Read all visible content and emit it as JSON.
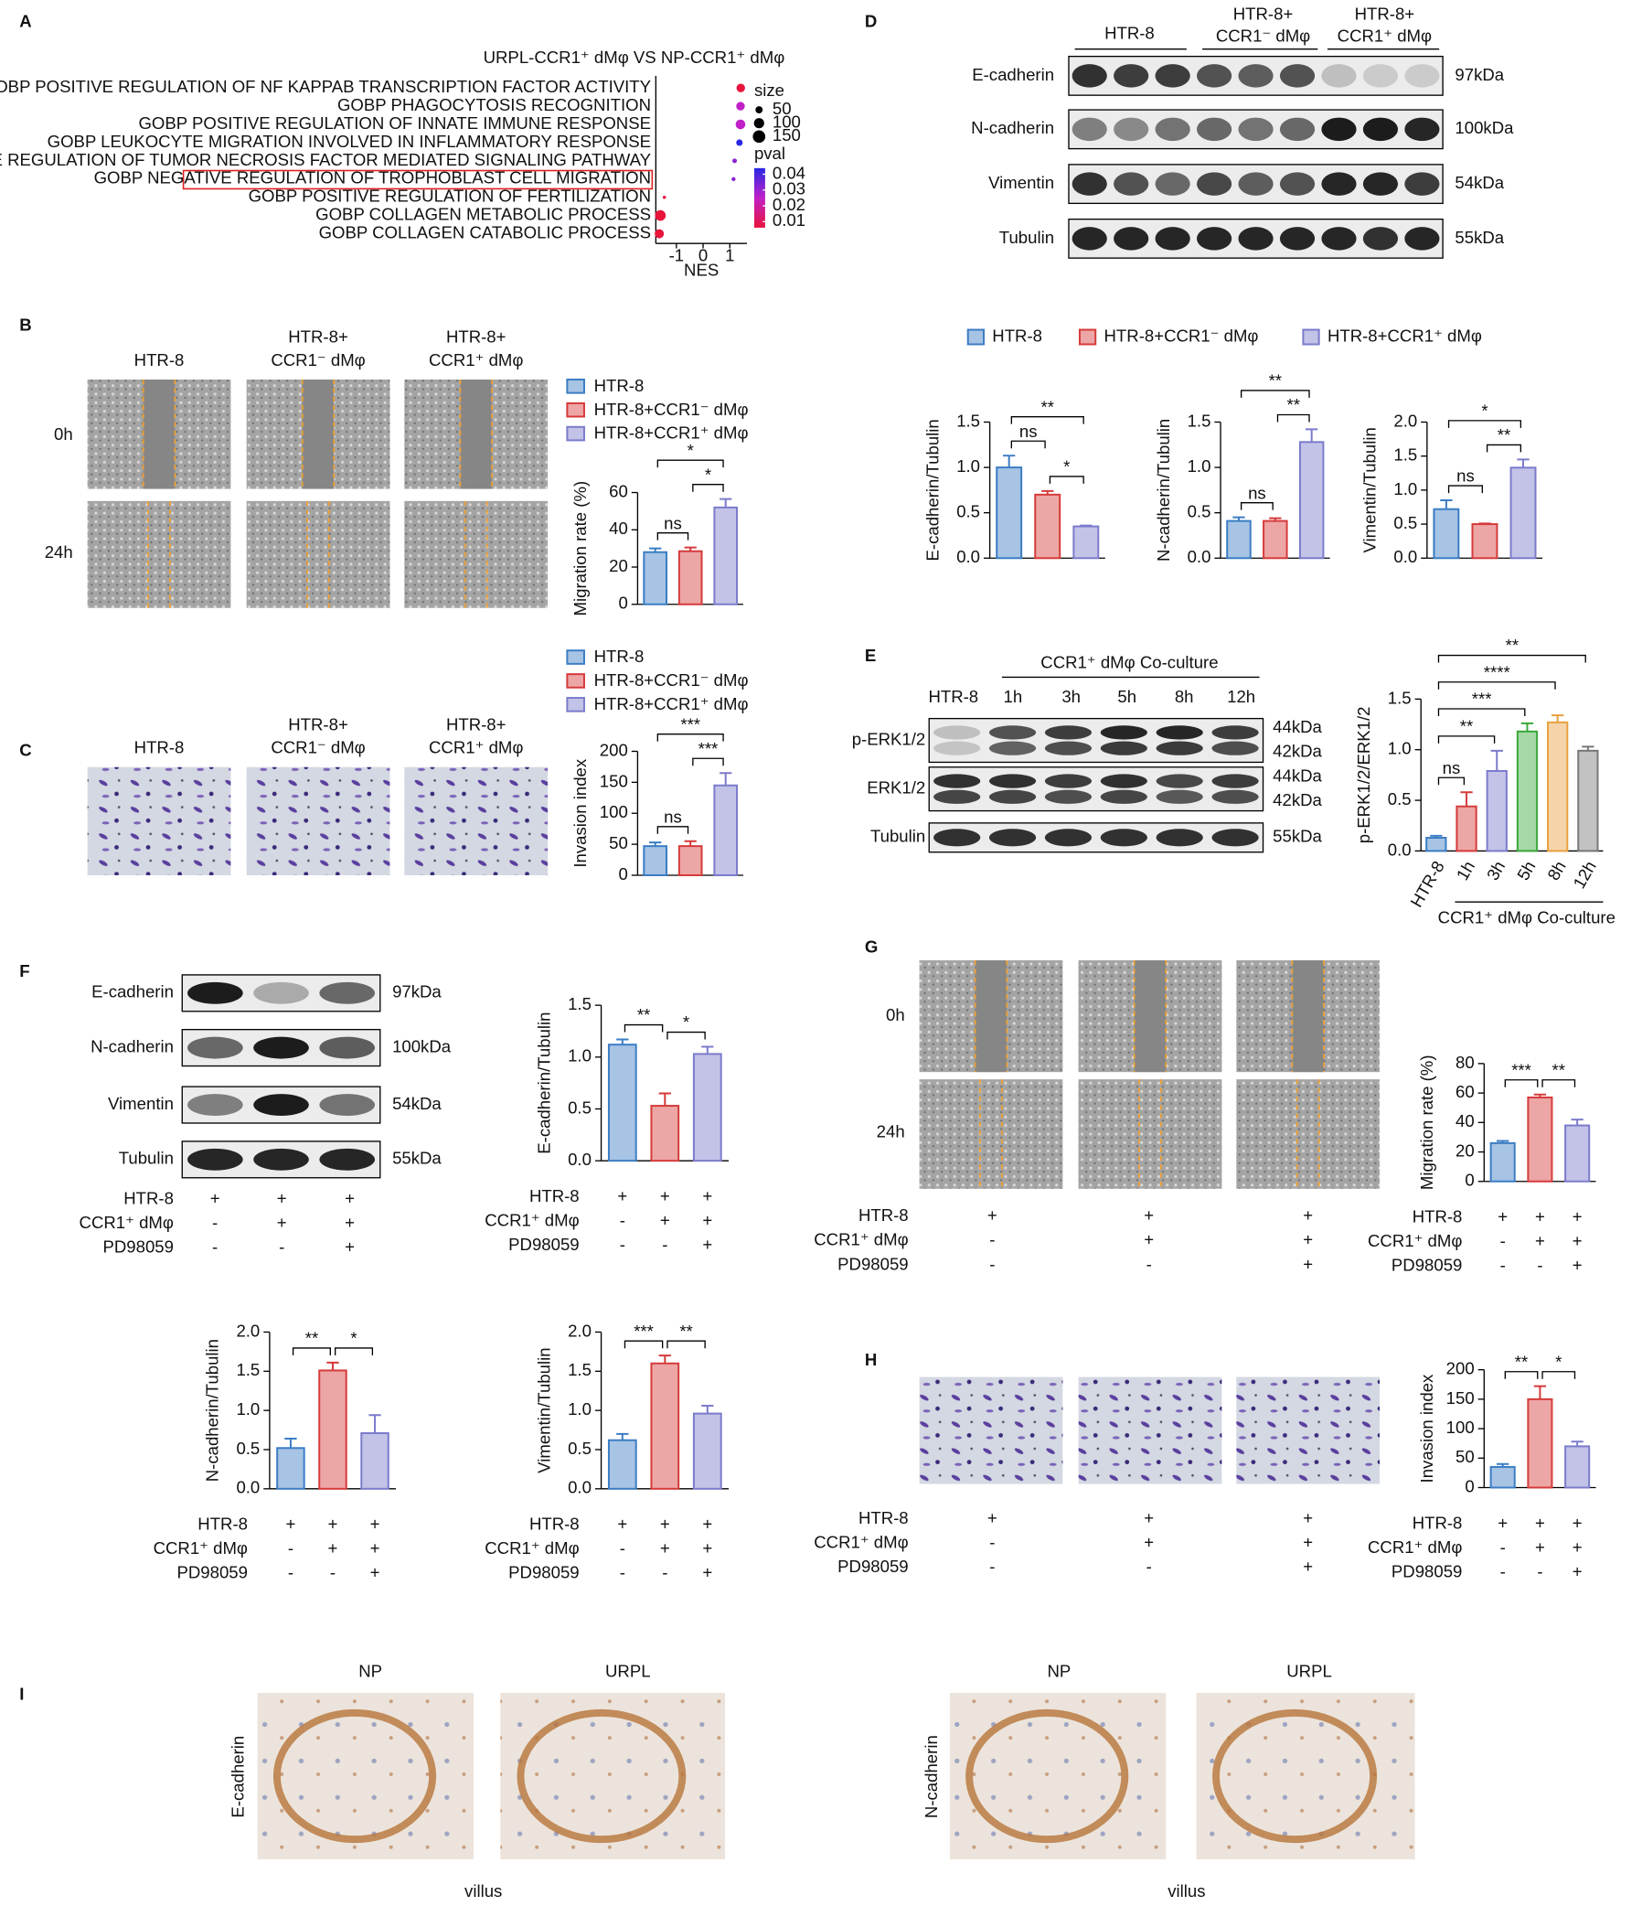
{
  "panels": {
    "letters": [
      "A",
      "B",
      "C",
      "D",
      "E",
      "F",
      "G",
      "H",
      "I"
    ],
    "B": {
      "columns": [
        [
          "HTR-8"
        ],
        [
          "HTR-8+",
          "CCR1⁻ dMφ"
        ],
        [
          "HTR-8+",
          "CCR1⁺ dMφ"
        ]
      ],
      "rows": [
        "0h",
        "24h"
      ]
    },
    "C": {
      "columns": [
        [
          "HTR-8"
        ],
        [
          "HTR-8+",
          "CCR1⁻ dMφ"
        ],
        [
          "HTR-8+",
          "CCR1⁺ dMφ"
        ]
      ]
    },
    "D": {
      "groups": [
        [
          "HTR-8"
        ],
        [
          "HTR-8+",
          "CCR1⁻ dMφ"
        ],
        [
          "HTR-8+",
          "CCR1⁺ dMφ"
        ]
      ],
      "rows": [
        {
          "protein": "E-cadherin",
          "sizes": [
            "97kDa"
          ]
        },
        {
          "protein": "N-cadherin",
          "sizes": [
            "100kDa"
          ]
        },
        {
          "protein": "Vimentin",
          "sizes": [
            "54kDa"
          ]
        },
        {
          "protein": "Tubulin",
          "sizes": [
            "55kDa"
          ]
        }
      ],
      "legend": [
        {
          "name": "HTR-8",
          "color": "#3b7dc4"
        },
        {
          "name": "HTR-8+CCR1⁻ dMφ",
          "color": "#d63a3a"
        },
        {
          "name": "HTR-8+CCR1⁺ dMφ",
          "color": "#7b7bcc"
        }
      ]
    },
    "E": {
      "header": "CCR1⁺ dMφ Co-culture",
      "lanes": [
        "HTR-8",
        "1h",
        "3h",
        "5h",
        "8h",
        "12h"
      ],
      "rows": [
        {
          "protein": "p-ERK1/2",
          "sizes": [
            "44kDa",
            "42kDa"
          ]
        },
        {
          "protein": "ERK1/2",
          "sizes": [
            "44kDa",
            "42kDa"
          ]
        },
        {
          "protein": "Tubulin",
          "sizes": [
            "55kDa"
          ]
        }
      ]
    },
    "F": {
      "rows": [
        {
          "protein": "E-cadherin",
          "sizes": [
            "97kDa"
          ]
        },
        {
          "protein": "N-cadherin",
          "sizes": [
            "100kDa"
          ]
        },
        {
          "protein": "Vimentin",
          "sizes": [
            "54kDa"
          ]
        },
        {
          "protein": "Tubulin",
          "sizes": [
            "55kDa"
          ]
        }
      ],
      "conditions": [
        {
          "name": "HTR-8",
          "marks": [
            "+",
            "+",
            "+"
          ]
        },
        {
          "name": "CCR1⁺ dMφ",
          "marks": [
            "-",
            "+",
            "+"
          ]
        },
        {
          "name": "PD98059",
          "marks": [
            "-",
            "-",
            "+"
          ]
        }
      ]
    },
    "G": {
      "rows": [
        "0h",
        "24h"
      ],
      "conditions": [
        {
          "name": "HTR-8",
          "marks": [
            "+",
            "+",
            "+"
          ]
        },
        {
          "name": "CCR1⁺ dMφ",
          "marks": [
            "-",
            "+",
            "+"
          ]
        },
        {
          "name": "PD98059",
          "marks": [
            "-",
            "-",
            "+"
          ]
        }
      ]
    },
    "H": {
      "conditions": [
        {
          "name": "HTR-8",
          "marks": [
            "+",
            "+",
            "+"
          ]
        },
        {
          "name": "CCR1⁺ dMφ",
          "marks": [
            "-",
            "+",
            "+"
          ]
        },
        {
          "name": "PD98059",
          "marks": [
            "-",
            "-",
            "+"
          ]
        }
      ]
    },
    "I": {
      "groups": [
        {
          "stain": "E-cadherin",
          "columns": [
            "NP",
            "URPL"
          ],
          "caption": "villus"
        },
        {
          "stain": "N-cadherin",
          "columns": [
            "NP",
            "URPL"
          ],
          "caption": "villus"
        }
      ]
    }
  },
  "chart_data": [
    {
      "type": "dot",
      "title": "URPL-CCR1⁺ dMφ VS NP-CCR1⁺ dMφ",
      "categories": [
        "GOBP POSITIVE REGULATION OF NF KAPPAB TRANSCRIPTION FACTOR ACTIVITY",
        "GOBP PHAGOCYTOSIS RECOGNITION",
        "GOBP POSITIVE REGULATION OF INNATE IMMUNE RESPONSE",
        "GOBP LEUKOCYTE MIGRATION INVOLVED IN INFLAMMATORY RESPONSE",
        "GOBP POSITIVE REGULATION OF TUMOR NECROSIS FACTOR MEDIATED SIGNALING PATHWAY",
        "GOBP NEGATIVE REGULATION OF TROPHOBLAST CELL MIGRATION",
        "GOBP POSITIVE REGULATION OF FERTILIZATION",
        "GOBP COLLAGEN METABOLIC PROCESS",
        "GOBP COLLAGEN CATABOLIC PROCESS"
      ],
      "values": [
        1.41,
        1.4,
        1.4,
        1.36,
        1.18,
        1.14,
        -1.45,
        -1.6,
        -1.64
      ],
      "sizes": [
        70,
        70,
        90,
        40,
        20,
        15,
        10,
        110,
        80
      ],
      "pvals": [
        0.01,
        0.025,
        0.025,
        0.04,
        0.03,
        0.03,
        0.01,
        0.01,
        0.01
      ],
      "xlabel": "NES",
      "xlim": [
        -1.77,
        1.64
      ],
      "xticks": [
        -1,
        0,
        1
      ],
      "size_legend": {
        "title": "size",
        "ticks": [
          50,
          100,
          150
        ]
      },
      "color_legend": {
        "title": "pval",
        "ticks": [
          0.04,
          0.03,
          0.02,
          0.01
        ]
      }
    },
    {
      "type": "bar",
      "ylabel": "Migration rate (%)",
      "values": [
        28,
        28.5,
        52
      ],
      "errors": [
        2,
        2,
        4.5
      ],
      "colors": [
        "#3b7dc4",
        "#d63a3a",
        "#7b7bcc"
      ],
      "ylim": [
        0,
        60
      ],
      "yticks": [
        0,
        20,
        40,
        60
      ],
      "legend": [
        "HTR-8",
        "HTR-8+CCR1⁻ dMφ",
        "HTR-8+CCR1⁺ dMφ"
      ],
      "significance": [
        "ns",
        "*",
        "*"
      ],
      "comparisons": "adjacent"
    },
    {
      "type": "bar",
      "ylabel": "Invasion index",
      "values": [
        47,
        47,
        145
      ],
      "errors": [
        6,
        8,
        20
      ],
      "colors": [
        "#3b7dc4",
        "#d63a3a",
        "#7b7bcc"
      ],
      "ylim": [
        0,
        200
      ],
      "yticks": [
        0,
        50,
        100,
        150,
        200
      ],
      "legend": [
        "HTR-8",
        "HTR-8+CCR1⁻ dMφ",
        "HTR-8+CCR1⁺ dMφ"
      ],
      "significance": [
        "ns",
        "***",
        "***"
      ],
      "comparisons": "adjacent"
    },
    {
      "type": "bar",
      "ylabel": "E-cadherin/Tubulin",
      "values": [
        1.0,
        0.7,
        0.35
      ],
      "errors": [
        0.13,
        0.04,
        0.01
      ],
      "colors": [
        "#3b7dc4",
        "#d63a3a",
        "#7b7bcc"
      ],
      "ylim": [
        0,
        1.5
      ],
      "yticks": [
        {
          "value": 0,
          "label": "0.0"
        },
        0.5,
        {
          "value": 1,
          "label": "1.0"
        },
        1.5
      ],
      "significance": [
        "ns",
        "*",
        "**"
      ],
      "comparisons": "adjacent"
    },
    {
      "type": "bar",
      "ylabel": "N-cadherin/Tubulin",
      "values": [
        0.41,
        0.41,
        1.28
      ],
      "errors": [
        0.04,
        0.03,
        0.14
      ],
      "colors": [
        "#3b7dc4",
        "#d63a3a",
        "#7b7bcc"
      ],
      "ylim": [
        0,
        1.5
      ],
      "yticks": [
        {
          "value": 0,
          "label": "0.0"
        },
        0.5,
        {
          "value": 1,
          "label": "1.0"
        },
        1.5
      ],
      "significance": [
        "ns",
        "**",
        "**"
      ],
      "comparisons": "adjacent"
    },
    {
      "type": "bar",
      "ylabel": "Vimentin/Tubulin",
      "values": [
        0.72,
        0.5,
        1.33
      ],
      "errors": [
        0.13,
        0.01,
        0.12
      ],
      "colors": [
        "#3b7dc4",
        "#d63a3a",
        "#7b7bcc"
      ],
      "ylim": [
        0,
        2
      ],
      "yticks": [
        {
          "value": 0,
          "label": "0.0"
        },
        0.5,
        {
          "value": 1,
          "label": "1.0"
        },
        1.5,
        {
          "value": 2,
          "label": "2.0"
        }
      ],
      "significance": [
        "ns",
        "**",
        "*"
      ],
      "comparisons": "adjacent"
    },
    {
      "type": "bar",
      "ylabel": "p-ERK1/2/ERK1/2",
      "categories": [
        "HTR-8",
        "1h",
        "3h",
        "5h",
        "8h",
        "12h"
      ],
      "xlabel": "CCR1⁺ dMφ Co-culture",
      "values": [
        0.13,
        0.44,
        0.79,
        1.18,
        1.27,
        0.99
      ],
      "errors": [
        0.02,
        0.14,
        0.2,
        0.08,
        0.07,
        0.04
      ],
      "colors": [
        "#3b7dc4",
        "#d63a3a",
        "#7b7bcc",
        "#3aa83a",
        "#e8a040",
        "#777777"
      ],
      "ylim": [
        0,
        1.5
      ],
      "yticks": [
        {
          "value": 0,
          "label": "0.0"
        },
        0.5,
        {
          "value": 1,
          "label": "1.0"
        },
        1.5
      ],
      "significance": [
        "ns",
        "**",
        "***",
        "****",
        "**"
      ],
      "comparisons": "vs-first"
    },
    {
      "type": "bar",
      "ylabel": "E-cadherin/Tubulin",
      "values": [
        1.12,
        0.53,
        1.03
      ],
      "errors": [
        0.05,
        0.12,
        0.07
      ],
      "colors": [
        "#3b7dc4",
        "#d63a3a",
        "#7b7bcc"
      ],
      "ylim": [
        0,
        1.5
      ],
      "yticks": [
        {
          "value": 0,
          "label": "0.0"
        },
        0.5,
        {
          "value": 1,
          "label": "1.0"
        },
        1.5
      ],
      "significance": [
        "**",
        "*"
      ],
      "comparisons": "adjacent",
      "conditions": [
        {
          "name": "HTR-8",
          "marks": [
            "+",
            "+",
            "+"
          ]
        },
        {
          "name": "CCR1⁺ dMφ",
          "marks": [
            "-",
            "+",
            "+"
          ]
        },
        {
          "name": "PD98059",
          "marks": [
            "-",
            "-",
            "+"
          ]
        }
      ]
    },
    {
      "type": "bar",
      "ylabel": "N-cadherin/Tubulin",
      "values": [
        0.52,
        1.51,
        0.71
      ],
      "errors": [
        0.12,
        0.1,
        0.23
      ],
      "colors": [
        "#3b7dc4",
        "#d63a3a",
        "#7b7bcc"
      ],
      "ylim": [
        0,
        2
      ],
      "yticks": [
        {
          "value": 0,
          "label": "0.0"
        },
        0.5,
        {
          "value": 1,
          "label": "1.0"
        },
        1.5,
        {
          "value": 2,
          "label": "2.0"
        }
      ],
      "significance": [
        "**",
        "*"
      ],
      "comparisons": "adjacent",
      "conditions": [
        {
          "name": "HTR-8",
          "marks": [
            "+",
            "+",
            "+"
          ]
        },
        {
          "name": "CCR1⁺ dMφ",
          "marks": [
            "-",
            "+",
            "+"
          ]
        },
        {
          "name": "PD98059",
          "marks": [
            "-",
            "-",
            "+"
          ]
        }
      ]
    },
    {
      "type": "bar",
      "ylabel": "Vimentin/Tubulin",
      "values": [
        0.62,
        1.6,
        0.96
      ],
      "errors": [
        0.08,
        0.1,
        0.1
      ],
      "colors": [
        "#3b7dc4",
        "#d63a3a",
        "#7b7bcc"
      ],
      "ylim": [
        0,
        2
      ],
      "yticks": [
        {
          "value": 0,
          "label": "0.0"
        },
        0.5,
        {
          "value": 1,
          "label": "1.0"
        },
        1.5,
        {
          "value": 2,
          "label": "2.0"
        }
      ],
      "significance": [
        "***",
        "**"
      ],
      "comparisons": "adjacent",
      "conditions": [
        {
          "name": "HTR-8",
          "marks": [
            "+",
            "+",
            "+"
          ]
        },
        {
          "name": "CCR1⁺ dMφ",
          "marks": [
            "-",
            "+",
            "+"
          ]
        },
        {
          "name": "PD98059",
          "marks": [
            "-",
            "-",
            "+"
          ]
        }
      ]
    },
    {
      "type": "bar",
      "ylabel": "Migration rate (%)",
      "values": [
        26,
        57,
        38
      ],
      "errors": [
        1.5,
        2,
        4
      ],
      "colors": [
        "#3b7dc4",
        "#d63a3a",
        "#7b7bcc"
      ],
      "ylim": [
        0,
        80
      ],
      "yticks": [
        0,
        20,
        40,
        60,
        80
      ],
      "significance": [
        "***",
        "**"
      ],
      "comparisons": "adjacent",
      "conditions": [
        {
          "name": "HTR-8",
          "marks": [
            "+",
            "+",
            "+"
          ]
        },
        {
          "name": "CCR1⁺ dMφ",
          "marks": [
            "-",
            "+",
            "+"
          ]
        },
        {
          "name": "PD98059",
          "marks": [
            "-",
            "-",
            "+"
          ]
        }
      ]
    },
    {
      "type": "bar",
      "ylabel": "Invasion index",
      "values": [
        35,
        150,
        70
      ],
      "errors": [
        5,
        22,
        8
      ],
      "colors": [
        "#3b7dc4",
        "#d63a3a",
        "#7b7bcc"
      ],
      "ylim": [
        0,
        200
      ],
      "yticks": [
        0,
        50,
        100,
        150,
        200
      ],
      "significance": [
        "**",
        "*"
      ],
      "comparisons": "adjacent",
      "conditions": [
        {
          "name": "HTR-8",
          "marks": [
            "+",
            "+",
            "+"
          ]
        },
        {
          "name": "CCR1⁺ dMφ",
          "marks": [
            "-",
            "+",
            "+"
          ]
        },
        {
          "name": "PD98059",
          "marks": [
            "-",
            "-",
            "+"
          ]
        }
      ]
    }
  ]
}
